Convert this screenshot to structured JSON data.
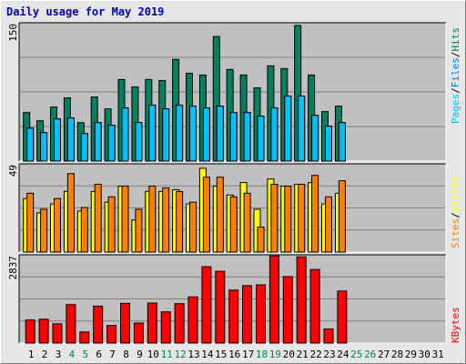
{
  "title": "Daily usage for May 2019",
  "colors": {
    "hits": "#00805c",
    "files": "#0080ff",
    "pages": "#00c0ff",
    "visits": "#ffff00",
    "sites": "#ff8000",
    "kbytes": "#ff0000",
    "weekday": "#000000",
    "weekend": "#00805c"
  },
  "chart_data": [
    {
      "type": "bar",
      "name": "hits-files-pages",
      "ymax_label": "150",
      "ylim": [
        0,
        150
      ],
      "grid": true,
      "x": [
        1,
        2,
        3,
        4,
        5,
        6,
        7,
        8,
        9,
        10,
        11,
        12,
        13,
        14,
        15,
        16,
        17,
        18,
        19,
        20,
        21,
        22,
        23,
        24,
        25,
        26,
        27,
        28,
        29,
        30,
        31
      ],
      "series": [
        {
          "name": "Hits",
          "values": [
            53,
            44,
            59,
            69,
            42,
            70,
            57,
            89,
            81,
            89,
            88,
            111,
            96,
            94,
            136,
            100,
            94,
            80,
            104,
            101,
            148,
            94,
            54,
            60,
            0,
            0,
            0,
            0,
            0,
            0,
            0
          ]
        },
        {
          "name": "Files",
          "values": [
            36,
            31,
            46,
            47,
            30,
            42,
            39,
            58,
            42,
            61,
            57,
            61,
            60,
            58,
            60,
            53,
            53,
            49,
            58,
            71,
            71,
            50,
            38,
            42,
            0,
            0,
            0,
            0,
            0,
            0,
            0
          ]
        },
        {
          "name": "Pages",
          "values": [
            36,
            31,
            46,
            47,
            30,
            42,
            39,
            58,
            42,
            61,
            57,
            61,
            60,
            58,
            60,
            53,
            53,
            49,
            58,
            71,
            71,
            50,
            38,
            42,
            0,
            0,
            0,
            0,
            0,
            0,
            0
          ]
        }
      ],
      "legend": [
        "Pages",
        "/",
        "Files",
        "/",
        "Hits"
      ]
    },
    {
      "type": "bar",
      "name": "visits-sites",
      "ymax_label": "49",
      "ylim": [
        0,
        49
      ],
      "grid": true,
      "x": [
        1,
        2,
        3,
        4,
        5,
        6,
        7,
        8,
        9,
        10,
        11,
        12,
        13,
        14,
        15,
        16,
        17,
        18,
        19,
        20,
        21,
        22,
        23,
        24,
        25,
        26,
        27,
        28,
        29,
        30,
        31
      ],
      "series": [
        {
          "name": "Visits",
          "values": [
            30,
            22,
            27,
            34,
            23,
            34,
            28,
            37,
            18,
            34,
            34,
            35,
            27,
            47,
            37,
            32,
            39,
            24,
            41,
            37,
            38,
            39,
            27,
            33,
            0,
            0,
            0,
            0,
            0,
            0,
            0
          ]
        },
        {
          "name": "Sites",
          "values": [
            33,
            24,
            30,
            44,
            25,
            38,
            31,
            37,
            24,
            37,
            36,
            34,
            28,
            42,
            42,
            31,
            33,
            14,
            38,
            37,
            38,
            43,
            31,
            40,
            0,
            0,
            0,
            0,
            0,
            0,
            0
          ]
        }
      ],
      "legend": [
        "Sites",
        "/",
        "Visits"
      ]
    },
    {
      "type": "bar",
      "name": "kbytes",
      "ymax_label": "2837",
      "ylim": [
        0,
        2837
      ],
      "grid": true,
      "x": [
        1,
        2,
        3,
        4,
        5,
        6,
        7,
        8,
        9,
        10,
        11,
        12,
        13,
        14,
        15,
        16,
        17,
        18,
        19,
        20,
        21,
        22,
        23,
        24,
        25,
        26,
        27,
        28,
        29,
        30,
        31
      ],
      "series": [
        {
          "name": "KBytes",
          "values": [
            750,
            775,
            625,
            1250,
            360,
            1200,
            575,
            1290,
            650,
            1300,
            1015,
            1280,
            1500,
            2480,
            2330,
            1720,
            1865,
            1890,
            2830,
            2160,
            2800,
            2390,
            460,
            1690,
            0,
            0,
            0,
            0,
            0,
            0,
            0
          ]
        }
      ],
      "legend": [
        "KBytes"
      ]
    }
  ],
  "days": [
    "1",
    "2",
    "3",
    "4",
    "5",
    "6",
    "7",
    "8",
    "9",
    "10",
    "11",
    "12",
    "13",
    "14",
    "15",
    "16",
    "17",
    "18",
    "19",
    "20",
    "21",
    "22",
    "23",
    "24",
    "25",
    "26",
    "27",
    "28",
    "29",
    "30",
    "31"
  ],
  "weekend_days": [
    4,
    5,
    11,
    12,
    18,
    19,
    25,
    26
  ]
}
